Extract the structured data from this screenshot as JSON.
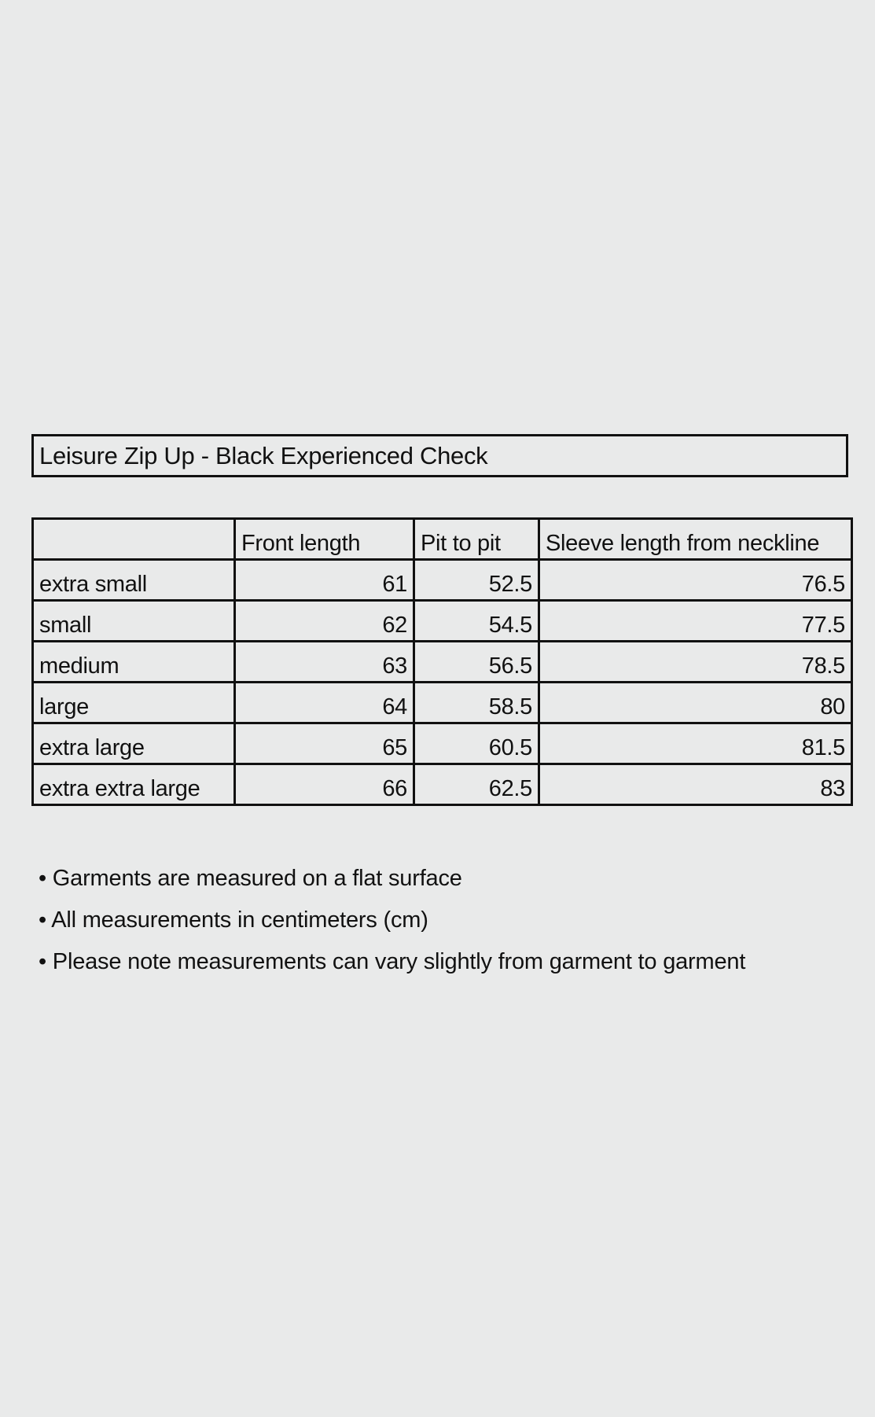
{
  "title": "Leisure Zip Up - Black Experienced Check",
  "table": {
    "headers": [
      "",
      "Front length",
      "Pit to pit",
      "Sleeve length from neckline"
    ],
    "rows": [
      [
        "extra small",
        "61",
        "52.5",
        "76.5"
      ],
      [
        "small",
        "62",
        "54.5",
        "77.5"
      ],
      [
        "medium",
        "63",
        "56.5",
        "78.5"
      ],
      [
        "large",
        "64",
        "58.5",
        "80"
      ],
      [
        "extra large",
        "65",
        "60.5",
        "81.5"
      ],
      [
        "extra extra large",
        "66",
        "62.5",
        "83"
      ]
    ]
  },
  "notes": [
    "• Garments are measured on a flat surface",
    "• All measurements in centimeters (cm)",
    "• Please note measurements can vary slightly from garment to garment"
  ]
}
